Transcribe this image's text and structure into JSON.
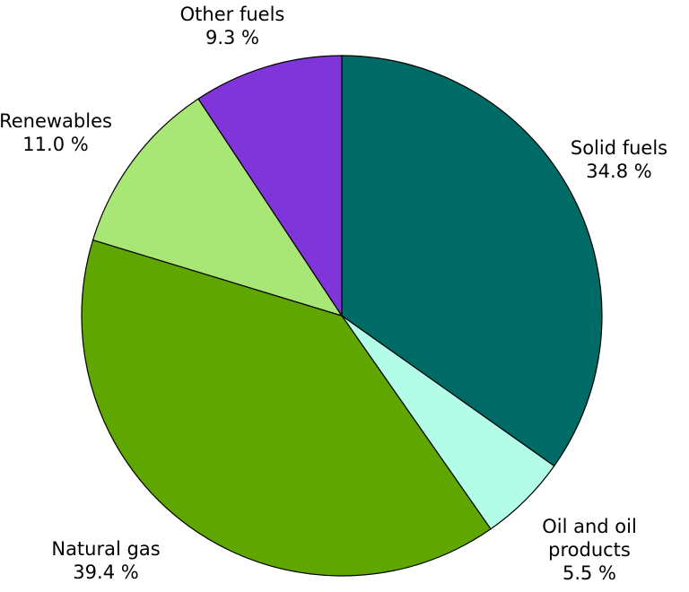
{
  "chart_data": {
    "type": "pie",
    "categories": [
      "Solid fuels",
      "Oil and oil products",
      "Natural gas",
      "Renewables",
      "Other fuels"
    ],
    "values": [
      34.8,
      5.5,
      39.4,
      11.0,
      9.3
    ],
    "value_labels": [
      "34.8 %",
      "5.5 %",
      "39.4 %",
      "11.0 %",
      "9.3 %"
    ],
    "colors": [
      "#006b66",
      "#b3fce8",
      "#5fa600",
      "#a8e675",
      "#7f35d9"
    ]
  }
}
